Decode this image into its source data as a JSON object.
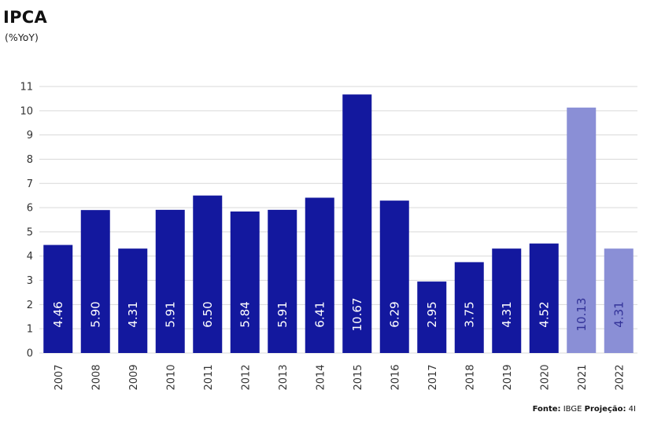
{
  "title": "IPCA",
  "subtitle": "(%YoY)",
  "source": {
    "label": "Fonte:",
    "text": " IBGE ",
    "proj_label": "Projeção:",
    "proj_text": " 4I"
  },
  "colors": {
    "actual": "#13189e",
    "projection": "#8a8fd6",
    "grid": "#d9d9d9",
    "label_actual": "#ffffff",
    "label_projection": "#333399"
  },
  "chart_data": {
    "type": "bar",
    "categories": [
      "2007",
      "2008",
      "2009",
      "2010",
      "2011",
      "2012",
      "2013",
      "2014",
      "2015",
      "2016",
      "2017",
      "2018",
      "2019",
      "2020",
      "2021",
      "2022"
    ],
    "values": [
      4.46,
      5.9,
      4.31,
      5.91,
      6.5,
      5.84,
      5.91,
      6.41,
      10.67,
      6.29,
      2.95,
      3.75,
      4.31,
      4.52,
      10.13,
      4.31
    ],
    "labels": [
      "4.46",
      "5.90",
      "4.31",
      "5.91",
      "6.50",
      "5.84",
      "5.91",
      "6.41",
      "10.67",
      "6.29",
      "2.95",
      "3.75",
      "4.31",
      "4.52",
      "10.13",
      "4.31"
    ],
    "projection": [
      false,
      false,
      false,
      false,
      false,
      false,
      false,
      false,
      false,
      false,
      false,
      false,
      false,
      false,
      true,
      true
    ],
    "title": "IPCA",
    "subtitle": "(%YoY)",
    "ylim": [
      0,
      11
    ],
    "yticks": [
      0,
      1,
      2,
      3,
      4,
      5,
      6,
      7,
      8,
      9,
      10,
      11
    ],
    "grid": true,
    "legend": "none"
  }
}
